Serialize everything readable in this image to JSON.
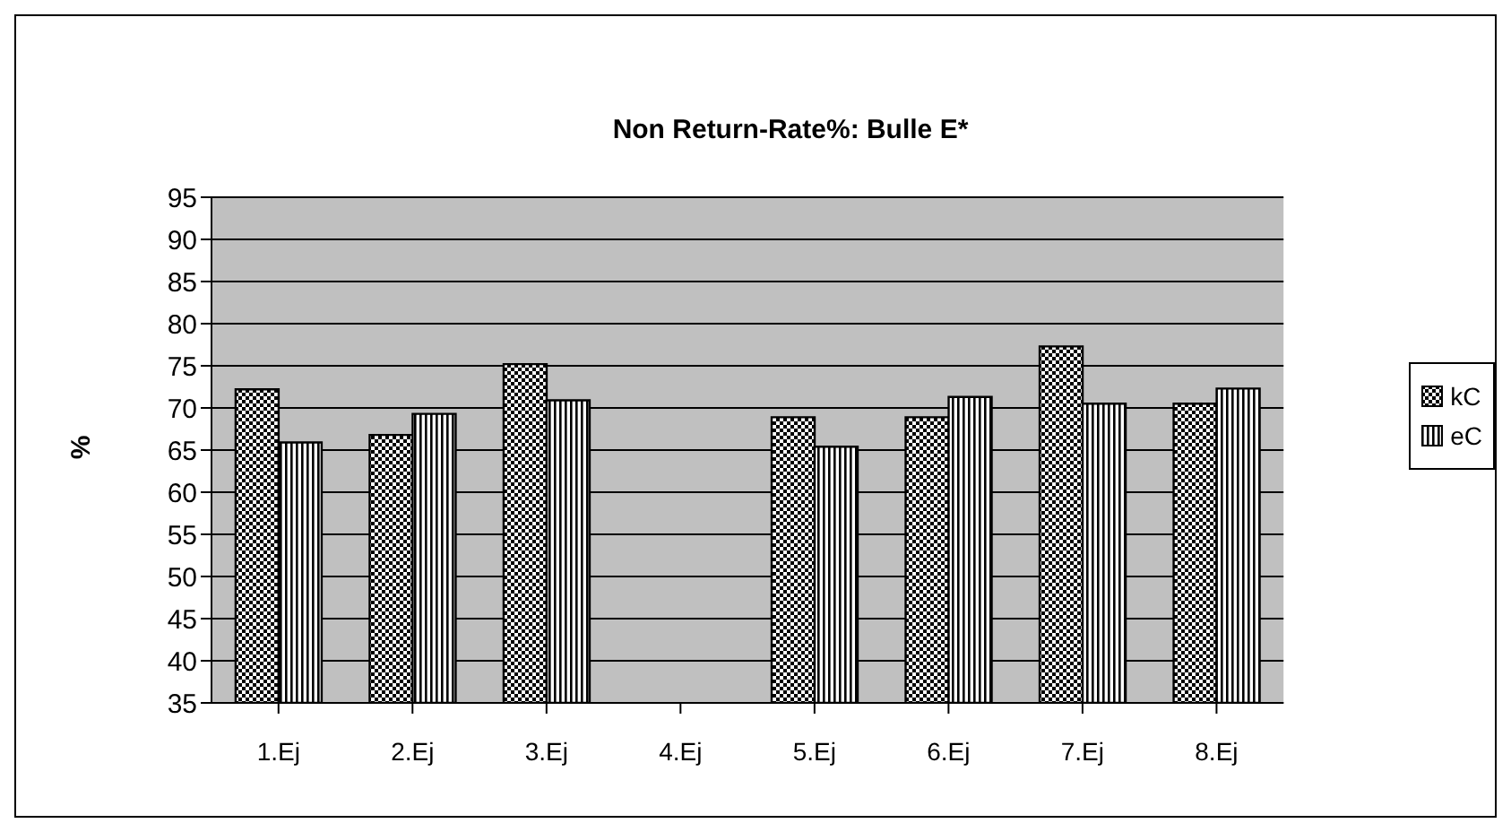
{
  "chart_data": {
    "type": "bar",
    "title": "Non Return-Rate%: Bulle E*",
    "ylabel": "%",
    "categories": [
      "1.Ej",
      "2.Ej",
      "3.Ej",
      "4.Ej",
      "5.Ej",
      "6.Ej",
      "7.Ej",
      "8.Ej"
    ],
    "series": [
      {
        "name": "kC",
        "color": "#000000",
        "values": [
          72.2,
          66.8,
          75.2,
          null,
          68.9,
          68.9,
          77.3,
          70.5
        ]
      },
      {
        "name": "eC",
        "color": "#000000",
        "values": [
          65.9,
          69.3,
          70.9,
          null,
          65.4,
          71.3,
          70.5,
          72.3
        ]
      }
    ],
    "ylim": [
      35,
      95
    ],
    "yticks": [
      35,
      40,
      45,
      50,
      55,
      60,
      65,
      70,
      75,
      80,
      85,
      90,
      95
    ],
    "grid": "y",
    "legend": "right"
  }
}
